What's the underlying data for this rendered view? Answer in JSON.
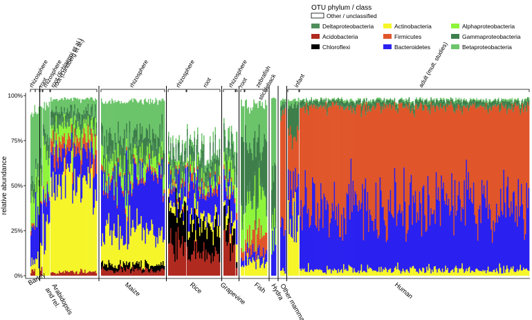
{
  "chart_data": {
    "type": "area",
    "ylabel": "relative abundance",
    "y_ticks": [
      "0%",
      "25%",
      "50%",
      "75%",
      "100%"
    ],
    "ylim": [
      0,
      100
    ],
    "legend": {
      "title": "OTU phylum / class",
      "placement": "top-right",
      "entries": [
        {
          "name": "Other / unclassified",
          "color": "#ffffff"
        },
        {
          "name": "Deltaproteobacteria",
          "color": "#4f8f5c"
        },
        {
          "name": "Acidobacteria",
          "color": "#b02a20"
        },
        {
          "name": "Chloroflexi",
          "color": "#000000"
        },
        {
          "name": "Actinobacteria",
          "color": "#f5f52a"
        },
        {
          "name": "Firmicutes",
          "color": "#e0562a"
        },
        {
          "name": "Bacteroidetes",
          "color": "#2a20f0"
        },
        {
          "name": "Alphaproteobacteria",
          "color": "#8ef53a"
        },
        {
          "name": "Gammaproteobacteria",
          "color": "#3e7e4a"
        },
        {
          "name": "Betaproteobacteria",
          "color": "#6cc46a"
        }
      ]
    },
    "hosts": [
      {
        "name": "Barley",
        "compartments": [
          {
            "label": "rhizosphere",
            "comp": {
              "Other / unclassified": 10,
              "Deltaproteobacteria": 5,
              "Acidobacteria": 3,
              "Actinobacteria": 5,
              "Firmicutes": 2,
              "Bacteroidetes": 25,
              "Alphaproteobacteria": 15,
              "Gammaproteobacteria": 5,
              "Betaproteobacteria": 30
            }
          },
          {
            "label": "root",
            "comp": {
              "Other / unclassified": 10,
              "Deltaproteobacteria": 3,
              "Actinobacteria": 8,
              "Bacteroidetes": 25,
              "Alphaproteobacteria": 20,
              "Gammaproteobacteria": 4,
              "Betaproteobacteria": 30
            }
          }
        ]
      },
      {
        "name": "Arabidopsis and rel.",
        "compartments": [
          {
            "label": "rhizosphere",
            "comp": {
              "Other / unclassified": 5,
              "Deltaproteobacteria": 5,
              "Acidobacteria": 3,
              "Actinobacteria": 20,
              "Firmicutes": 2,
              "Bacteroidetes": 25,
              "Alphaproteobacteria": 15,
              "Gammaproteobacteria": 5,
              "Betaproteobacteria": 20
            }
          },
          {
            "label": "root (Schlaeppi et al.)",
            "comp": {
              "Other / unclassified": 5,
              "Deltaproteobacteria": 3,
              "Actinobacteria": 25,
              "Firmicutes": 2,
              "Bacteroidetes": 20,
              "Alphaproteobacteria": 20,
              "Gammaproteobacteria": 5,
              "Betaproteobacteria": 20
            }
          },
          {
            "label": "root (Lundberg et al.)",
            "comp": {
              "Other / unclassified": 2,
              "Deltaproteobacteria": 4,
              "Acidobacteria": 2,
              "Actinobacteria": 50,
              "Firmicutes": 8,
              "Bacteroidetes": 15,
              "Alphaproteobacteria": 8,
              "Gammaproteobacteria": 4,
              "Betaproteobacteria": 7
            }
          }
        ]
      },
      {
        "name": "Maize",
        "compartments": [
          {
            "label": "rhizosphere",
            "comp": {
              "Other / unclassified": 3,
              "Deltaproteobacteria": 5,
              "Acidobacteria": 3,
              "Chloroflexi": 3,
              "Actinobacteria": 18,
              "Firmicutes": 2,
              "Bacteroidetes": 30,
              "Alphaproteobacteria": 8,
              "Gammaproteobacteria": 8,
              "Betaproteobacteria": 20
            }
          }
        ]
      },
      {
        "name": "Rice",
        "compartments": [
          {
            "label": "rhizosphere",
            "comp": {
              "Other / unclassified": 30,
              "Deltaproteobacteria": 8,
              "Acidobacteria": 18,
              "Chloroflexi": 18,
              "Actinobacteria": 4,
              "Firmicutes": 2,
              "Bacteroidetes": 10,
              "Alphaproteobacteria": 3,
              "Gammaproteobacteria": 4,
              "Betaproteobacteria": 3
            }
          },
          {
            "label": "root",
            "comp": {
              "Other / unclassified": 30,
              "Deltaproteobacteria": 8,
              "Acidobacteria": 12,
              "Chloroflexi": 15,
              "Actinobacteria": 5,
              "Firmicutes": 3,
              "Bacteroidetes": 15,
              "Alphaproteobacteria": 4,
              "Gammaproteobacteria": 4,
              "Betaproteobacteria": 4
            }
          }
        ]
      },
      {
        "name": "Grapevine",
        "compartments": [
          {
            "label": "rhizosphere",
            "comp": {
              "Other / unclassified": 22,
              "Deltaproteobacteria": 7,
              "Acidobacteria": 20,
              "Chloroflexi": 10,
              "Actinobacteria": 5,
              "Firmicutes": 2,
              "Bacteroidetes": 15,
              "Alphaproteobacteria": 8,
              "Gammaproteobacteria": 5,
              "Betaproteobacteria": 6
            }
          },
          {
            "label": "root",
            "comp": {
              "Other / unclassified": 20,
              "Deltaproteobacteria": 5,
              "Acidobacteria": 5,
              "Chloroflexi": 5,
              "Actinobacteria": 8,
              "Firmicutes": 3,
              "Bacteroidetes": 15,
              "Alphaproteobacteria": 15,
              "Gammaproteobacteria": 10,
              "Betaproteobacteria": 14
            }
          }
        ]
      },
      {
        "name": "Fish",
        "compartments": [
          {
            "label": "zebrafish",
            "comp": {
              "Other / unclassified": 5,
              "Deltaproteobacteria": 3,
              "Actinobacteria": 5,
              "Firmicutes": 5,
              "Bacteroidetes": 5,
              "Alphaproteobacteria": 20,
              "Gammaproteobacteria": 37,
              "Betaproteobacteria": 20
            }
          },
          {
            "label": "stickleback",
            "comp": {
              "Other / unclassified": 5,
              "Deltaproteobacteria": 3,
              "Actinobacteria": 8,
              "Firmicutes": 10,
              "Bacteroidetes": 5,
              "Alphaproteobacteria": 20,
              "Gammaproteobacteria": 29,
              "Betaproteobacteria": 20
            }
          }
        ]
      },
      {
        "name": "Hydra",
        "compartments": [
          {
            "label": "",
            "comp": {
              "Other / unclassified": 2,
              "Deltaproteobacteria": 2,
              "Bacteroidetes": 20,
              "Alphaproteobacteria": 10,
              "Gammaproteobacteria": 20,
              "Betaproteobacteria": 46
            }
          }
        ]
      },
      {
        "name": "Other mammals",
        "compartments": [
          {
            "label": "",
            "comp": {
              "Other / unclassified": 2,
              "Deltaproteobacteria": 2,
              "Actinobacteria": 2,
              "Firmicutes": 70,
              "Bacteroidetes": 20,
              "Gammaproteobacteria": 2,
              "Betaproteobacteria": 2
            }
          }
        ]
      },
      {
        "name": "Human",
        "compartments": [
          {
            "label": "infant",
            "comp": {
              "Other / unclassified": 2,
              "Actinobacteria": 30,
              "Firmicutes": 30,
              "Bacteroidetes": 20,
              "Gammaproteobacteria": 15,
              "Betaproteobacteria": 3
            }
          },
          {
            "label": "adult (mult. studies)",
            "comp": {
              "Other / unclassified": 2,
              "Deltaproteobacteria": 1,
              "Actinobacteria": 3,
              "Firmicutes": 56,
              "Bacteroidetes": 35,
              "Gammaproteobacteria": 2,
              "Betaproteobacteria": 1
            }
          }
        ]
      }
    ]
  }
}
